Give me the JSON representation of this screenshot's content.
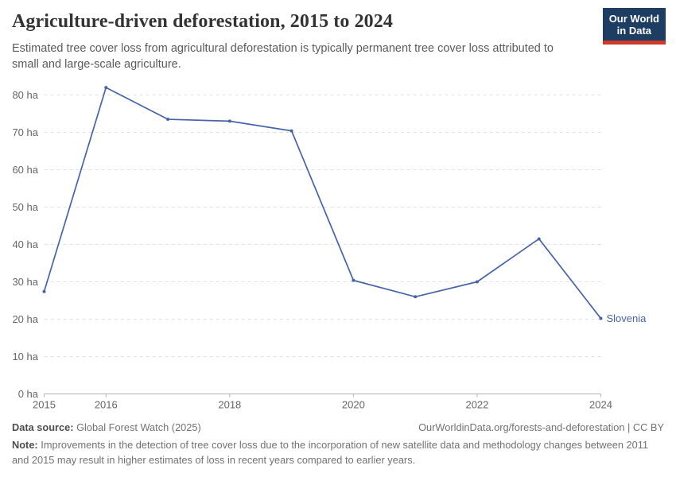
{
  "header": {
    "title": "Agriculture-driven deforestation, 2015 to 2024",
    "subtitle": "Estimated tree cover loss from agricultural deforestation is typically permanent tree cover loss attributed to small and large-scale agriculture.",
    "logo": {
      "line1": "Our World",
      "line2": "in Data",
      "bg_color": "#1d3d63",
      "accent_color": "#cf3a28"
    }
  },
  "chart_data": {
    "type": "line",
    "title": "Agriculture-driven deforestation, 2015 to 2024",
    "unit": "ha",
    "x": [
      2015,
      2016,
      2017,
      2018,
      2019,
      2020,
      2021,
      2022,
      2023,
      2024
    ],
    "series": [
      {
        "name": "Slovenia",
        "color": "#4665a9",
        "values": [
          27.4,
          82,
          73.5,
          73,
          70.4,
          30.4,
          26,
          30,
          41.5,
          20.2
        ]
      }
    ],
    "ylim": [
      0,
      85
    ],
    "y_ticks": [
      0,
      10,
      20,
      30,
      40,
      50,
      60,
      70,
      80
    ],
    "y_tick_suffix": " ha",
    "x_ticks": [
      2015,
      2016,
      2018,
      2020,
      2022,
      2024
    ],
    "grid": true,
    "gridline_color": "#e0e0e0",
    "axis_color": "#b3b3b3",
    "tick_label_color": "#666666",
    "legend_position": "end-of-line"
  },
  "footer": {
    "source_label": "Data source:",
    "source_value": " Global Forest Watch (2025)",
    "url": "OurWorldinData.org/forests-and-deforestation | CC BY",
    "note_label": "Note:",
    "note_text": " Improvements in the detection of tree cover loss due to the incorporation of new satellite data and methodology changes between 2011 and 2015 may result in higher estimates of loss in recent years compared to earlier years."
  }
}
